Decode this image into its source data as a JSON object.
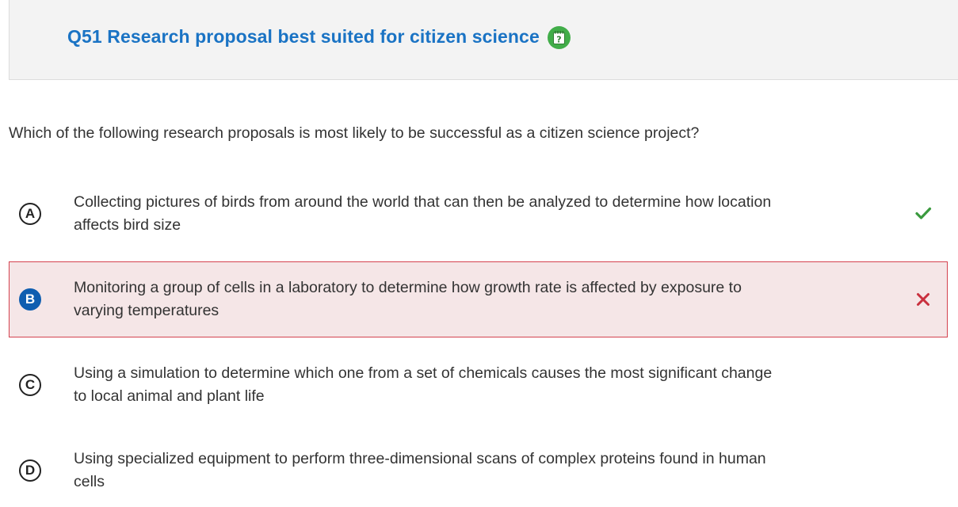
{
  "header": {
    "title": "Q51 Research proposal best suited for citizen science",
    "help_icon": "notepad-question-icon",
    "accent_color": "#1a73c4",
    "help_color": "#41ad49"
  },
  "question": {
    "text": "Which of the following research proposals is most likely to be successful as a citizen science project?"
  },
  "choices": [
    {
      "letter": "A",
      "text": "Collecting pictures of birds from around the world that can then be analyzed to determine how location affects bird size",
      "selected": false,
      "status": "correct",
      "status_icon": "check-icon"
    },
    {
      "letter": "B",
      "text": "Monitoring a group of cells in a laboratory to determine how growth rate is affected by exposure to varying temperatures",
      "selected": true,
      "status": "incorrect",
      "status_icon": "cross-icon"
    },
    {
      "letter": "C",
      "text": "Using a simulation to determine which one from a set of chemicals causes the most significant change to local animal and plant life",
      "selected": false,
      "status": "",
      "status_icon": ""
    },
    {
      "letter": "D",
      "text": "Using specialized equipment to perform three-dimensional scans of complex proteins found in human cells",
      "selected": false,
      "status": "",
      "status_icon": ""
    }
  ],
  "colors": {
    "correct": "#3a9a3e",
    "incorrect": "#c9303e",
    "selected_bg": "#f5e6e7",
    "selected_border": "#d4424f",
    "selected_letter_bg": "#0f5eb0"
  }
}
